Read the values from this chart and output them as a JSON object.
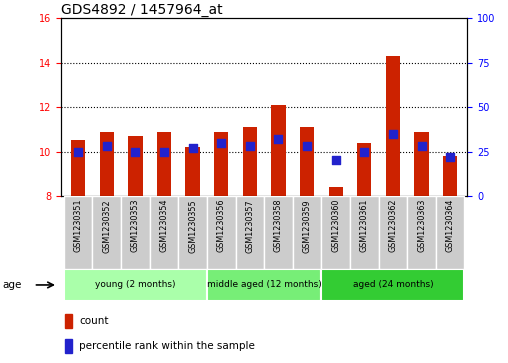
{
  "title": "GDS4892 / 1457964_at",
  "samples": [
    "GSM1230351",
    "GSM1230352",
    "GSM1230353",
    "GSM1230354",
    "GSM1230355",
    "GSM1230356",
    "GSM1230357",
    "GSM1230358",
    "GSM1230359",
    "GSM1230360",
    "GSM1230361",
    "GSM1230362",
    "GSM1230363",
    "GSM1230364"
  ],
  "counts": [
    10.5,
    10.9,
    10.7,
    10.9,
    10.2,
    10.9,
    11.1,
    12.1,
    11.1,
    8.4,
    10.4,
    14.3,
    10.9,
    9.8
  ],
  "percentiles": [
    25,
    28,
    25,
    25,
    27,
    30,
    28,
    32,
    28,
    20,
    25,
    35,
    28,
    22
  ],
  "ylim_left": [
    8,
    16
  ],
  "ylim_right": [
    0,
    100
  ],
  "yticks_left": [
    8,
    10,
    12,
    14,
    16
  ],
  "yticks_right": [
    0,
    25,
    50,
    75,
    100
  ],
  "bar_color": "#cc2200",
  "dot_color": "#2222cc",
  "bar_bottom": 8,
  "groups": [
    {
      "label": "young (2 months)",
      "start": 0,
      "end": 5
    },
    {
      "label": "middle aged (12 months)",
      "start": 5,
      "end": 9
    },
    {
      "label": "aged (24 months)",
      "start": 9,
      "end": 14
    }
  ],
  "group_colors": [
    "#aaffaa",
    "#77ee77",
    "#33cc33"
  ],
  "legend_count_label": "count",
  "legend_pct_label": "percentile rank within the sample",
  "age_label": "age",
  "bg_color": "#ffffff",
  "title_fontsize": 10,
  "tick_fontsize": 7,
  "bar_width": 0.5,
  "dot_size": 35,
  "sample_cell_color": "#cccccc"
}
